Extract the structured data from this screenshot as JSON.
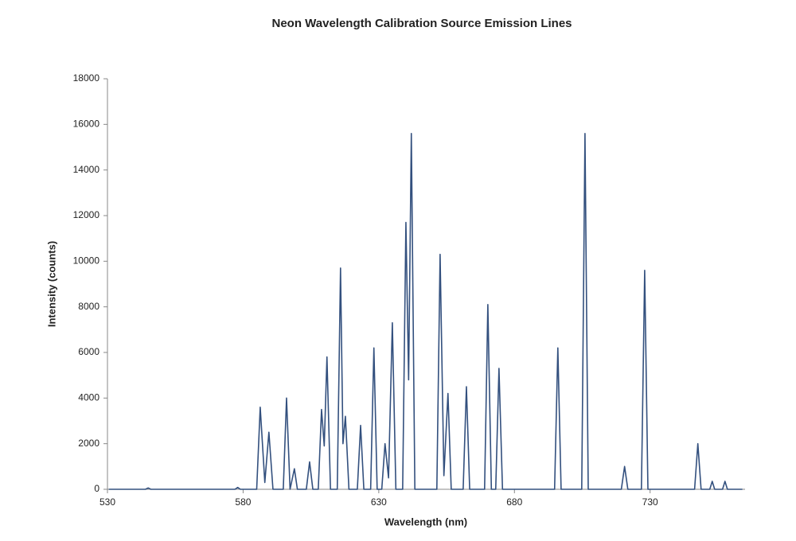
{
  "chart_data": {
    "type": "line",
    "title": "Neon Wavelength Calibration Source Emission Lines",
    "x_label": "Wavelength (nm)",
    "y_label": "Intensity (counts)",
    "color": "#33507e",
    "xlim": [
      530,
      765
    ],
    "xticks": [
      530,
      580,
      630,
      680,
      730
    ],
    "ylim": [
      0,
      18000
    ],
    "yticks": [
      0,
      2000,
      4000,
      6000,
      8000,
      10000,
      12000,
      14000,
      16000,
      18000
    ],
    "x": [
      530.5,
      544,
      545,
      546,
      577,
      578,
      579,
      585,
      586.3,
      588,
      589.5,
      591,
      594.8,
      596,
      597.3,
      598.9,
      600,
      603.3,
      604.5,
      605.7,
      607.7,
      608.9,
      609.9,
      610.9,
      612.2,
      614.7,
      615.9,
      616.8,
      617.7,
      619,
      622.1,
      623.3,
      624.5,
      627,
      628.2,
      629.4,
      631.1,
      632.3,
      633.6,
      635,
      636.3,
      638.8,
      640,
      641,
      642,
      643.3,
      651.4,
      652.6,
      654,
      655.5,
      656.7,
      661.1,
      662.3,
      663.5,
      669,
      670.2,
      671.5,
      673.1,
      674.3,
      675.6,
      694.8,
      696,
      697.2,
      704.8,
      706,
      707.2,
      719.4,
      720.6,
      721.8,
      726.8,
      728,
      729.2,
      746.4,
      747.6,
      748.8,
      752,
      752.9,
      753.8,
      756.7,
      757.6,
      758.5,
      764
    ],
    "values": [
      0,
      0,
      60,
      0,
      0,
      80,
      0,
      0,
      3600,
      300,
      2500,
      0,
      0,
      4000,
      0,
      900,
      0,
      0,
      1200,
      0,
      0,
      3500,
      1900,
      5800,
      0,
      0,
      9700,
      2000,
      3200,
      0,
      0,
      2800,
      0,
      0,
      6200,
      0,
      0,
      2000,
      500,
      7300,
      0,
      0,
      11700,
      4800,
      15600,
      0,
      0,
      10300,
      600,
      4200,
      0,
      0,
      4500,
      0,
      0,
      8100,
      0,
      0,
      5300,
      0,
      0,
      6200,
      0,
      0,
      15600,
      0,
      0,
      1000,
      0,
      0,
      9600,
      0,
      0,
      2000,
      0,
      0,
      350,
      0,
      0,
      350,
      0,
      0
    ]
  }
}
